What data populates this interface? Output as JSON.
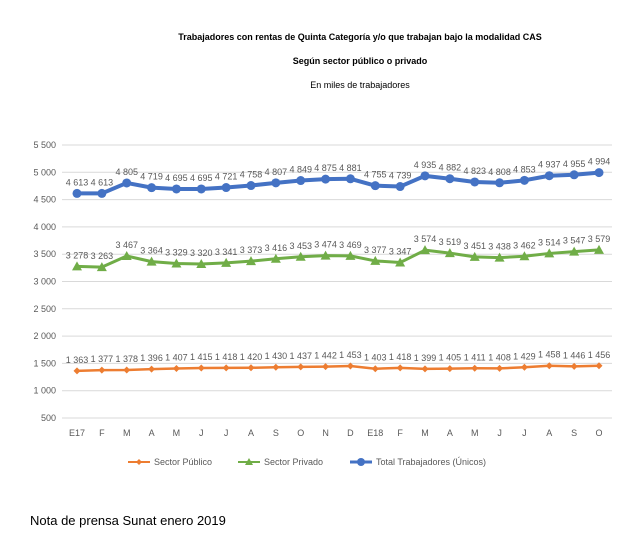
{
  "chart_data": {
    "type": "line",
    "title": "Trabajadores con rentas de Quinta Categoría y/o que trabajan bajo la modalidad CAS",
    "subtitle": "Según sector público o privado",
    "units": "En miles de trabajadores",
    "categories": [
      "E17",
      "F",
      "M",
      "A",
      "M",
      "J",
      "J",
      "A",
      "S",
      "O",
      "N",
      "D",
      "E18",
      "F",
      "M",
      "A",
      "M",
      "J",
      "J",
      "A",
      "S",
      "O"
    ],
    "ylim": [
      500,
      5500
    ],
    "yticks": [
      "500",
      "1 000",
      "1 500",
      "2 000",
      "2 500",
      "3 000",
      "3 500",
      "4 000",
      "4 500",
      "5 000",
      "5 500"
    ],
    "grid": true,
    "legend": "bottom",
    "series": [
      {
        "name": "Sector Público",
        "color": "#ED7D31",
        "marker": "diamond",
        "values": [
          1363,
          1377,
          1378,
          1396,
          1407,
          1415,
          1418,
          1420,
          1430,
          1437,
          1442,
          1453,
          1403,
          1418,
          1399,
          1405,
          1411,
          1408,
          1429,
          1458,
          1446,
          1456
        ]
      },
      {
        "name": "Sector Privado",
        "color": "#70AD47",
        "marker": "triangle",
        "values": [
          3278,
          3263,
          3467,
          3364,
          3329,
          3320,
          3341,
          3373,
          3416,
          3453,
          3474,
          3469,
          3377,
          3347,
          3574,
          3519,
          3451,
          3438,
          3462,
          3514,
          3547,
          3579
        ]
      },
      {
        "name": "Total Trabajadores (Únicos)",
        "color": "#4472C4",
        "marker": "circle",
        "values": [
          4613,
          4613,
          4805,
          4719,
          4695,
          4695,
          4721,
          4758,
          4807,
          4849,
          4875,
          4881,
          4755,
          4739,
          4935,
          4882,
          4823,
          4808,
          4853,
          4937,
          4955,
          4994
        ]
      }
    ]
  },
  "footer": "Nota de prensa Sunat enero 2019"
}
